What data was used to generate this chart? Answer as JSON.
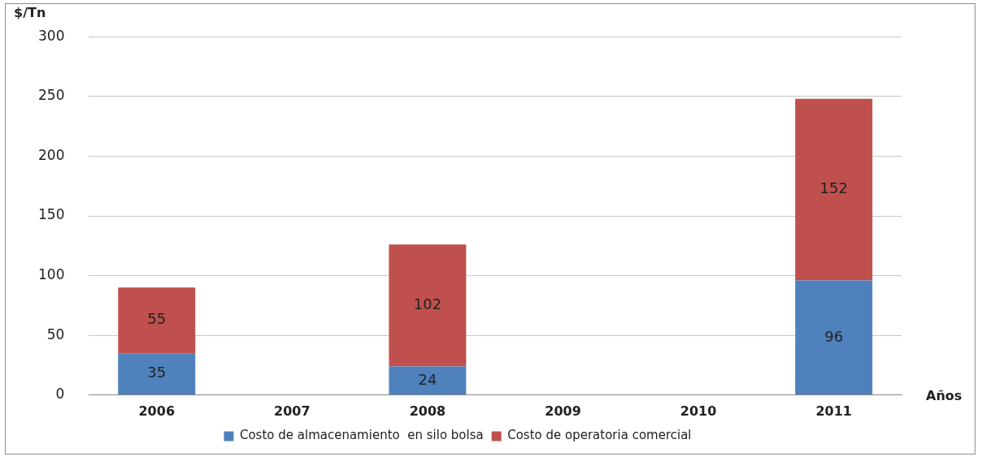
{
  "chart_data": {
    "type": "bar",
    "stacked": true,
    "ylabel": "$/Tn",
    "xlabel": "Años",
    "categories": [
      "2006",
      "2007",
      "2008",
      "2009",
      "2010",
      "2011"
    ],
    "series": [
      {
        "name": "Costo de almacenamiento  en silo bolsa",
        "color": "#4f81bd",
        "values": [
          35,
          null,
          24,
          null,
          null,
          96
        ]
      },
      {
        "name": "Costo de operatoria comercial",
        "color": "#c0504d",
        "values": [
          55,
          null,
          102,
          null,
          null,
          152
        ]
      }
    ],
    "ylim": [
      0,
      300
    ],
    "yticks": [
      0,
      50,
      100,
      150,
      200,
      250,
      300
    ],
    "grid": "y",
    "legend": "bottom",
    "data_labels": true
  }
}
